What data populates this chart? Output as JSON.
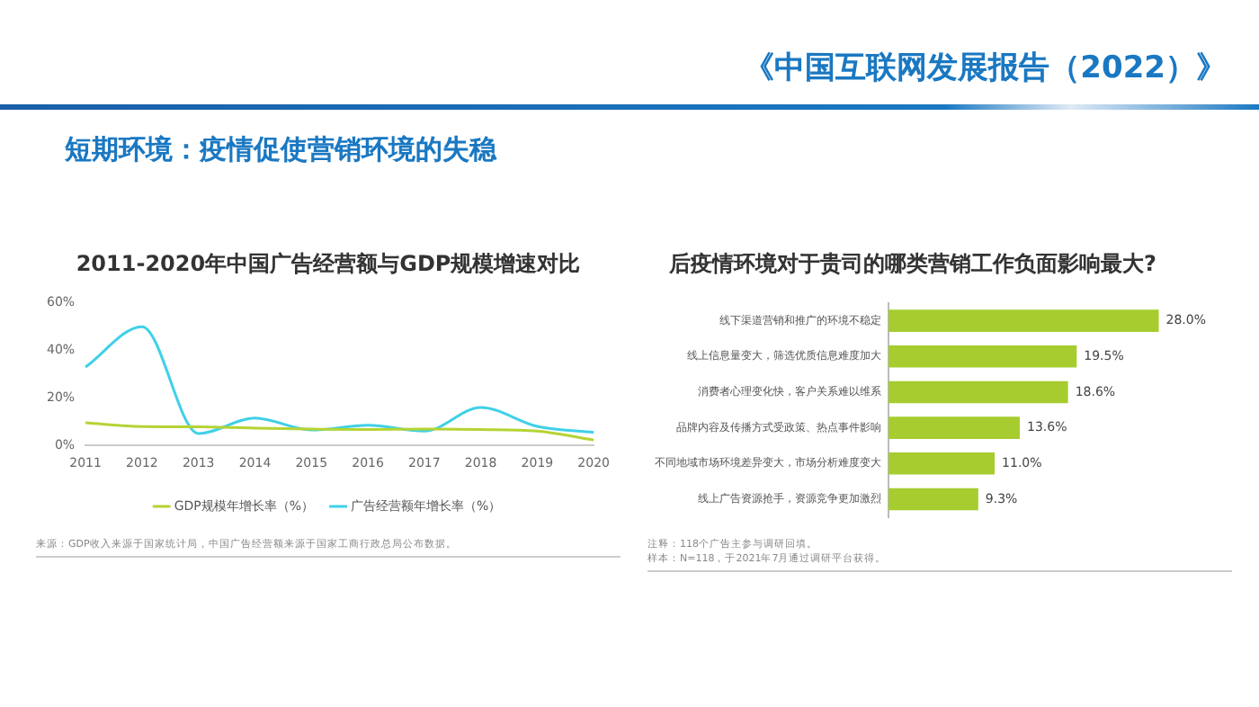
{
  "chart_data": [
    {
      "type": "other",
      "title": "《中国互联网发展报告（2022）》",
      "subtitle": "短期环境：疫情促使营销环境的失稳"
    },
    {
      "type": "line",
      "title": "2011-2020年中国广告经营额与GDP规模增速对比",
      "categories": [
        "2011",
        "2012",
        "2013",
        "2014",
        "2015",
        "2016",
        "2017",
        "2018",
        "2019",
        "2020"
      ],
      "series": [
        {
          "name": "GDP规模年增长率（%）",
          "color": "#b5d334",
          "values": [
            9.5,
            7.9,
            7.8,
            7.3,
            6.9,
            6.7,
            6.9,
            6.7,
            6.0,
            2.3
          ]
        },
        {
          "name": "广告经营额年增长率（%）",
          "color": "#3fd0e8",
          "values": [
            33,
            50,
            5,
            11.5,
            6.5,
            8.5,
            6,
            16,
            8,
            5.5
          ]
        }
      ],
      "ylim": [
        0,
        60
      ],
      "yticks": [
        {
          "value": 0,
          "label": "0%"
        },
        {
          "value": 20,
          "label": "20%"
        },
        {
          "value": 40,
          "label": "40%"
        },
        {
          "value": 60,
          "label": "60%"
        }
      ],
      "grid": false,
      "legend": "bottom",
      "marker": "none",
      "line_style": "solid",
      "annotations": [
        "来源：GDP收入来源于国家统计局，中国广告经营额来源于国家工商行政总局公布数据。"
      ]
    },
    {
      "type": "bar",
      "orientation": "horizontal",
      "title": "后疫情环境对于贵司的哪类营销工作负面影响最大?",
      "categories": [
        "线下渠道营销和推广的环境不稳定",
        "线上信息量变大，筛选优质信息难度加大",
        "消费者心理变化快，客户关系难以维系",
        "品牌内容及传播方式受政策、热点事件影响",
        "不同地域市场环境差异变大，市场分析难度变大",
        "线上广告资源抢手，资源竞争更加激烈"
      ],
      "values": [
        28.0,
        19.5,
        18.6,
        13.6,
        11.0,
        9.3
      ],
      "color": "#a6cc2f",
      "value_labels": [
        "28.0%",
        "19.5%",
        "18.6%",
        "13.6%",
        "11.0%",
        "9.3%"
      ],
      "tick_labels": "y",
      "grid": false,
      "legend": false,
      "annotations": [
        "注释：118个广告主参与调研回填。",
        "样本：N=118，于2021年7月通过调研平台获得。"
      ]
    }
  ]
}
